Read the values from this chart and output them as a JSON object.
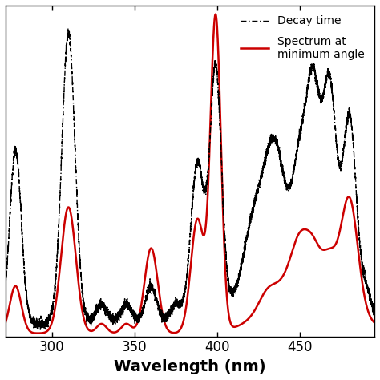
{
  "xlim": [
    272,
    495
  ],
  "ylim": [
    0,
    1.05
  ],
  "xlabel": "Wavelength (nm)",
  "legend_entries": [
    "Decay time",
    "Spectrum at\nminimum angle"
  ],
  "background_color": "#ffffff",
  "black_color": "#000000",
  "red_color": "#cc0000",
  "tick_fontsize": 12,
  "label_fontsize": 14
}
